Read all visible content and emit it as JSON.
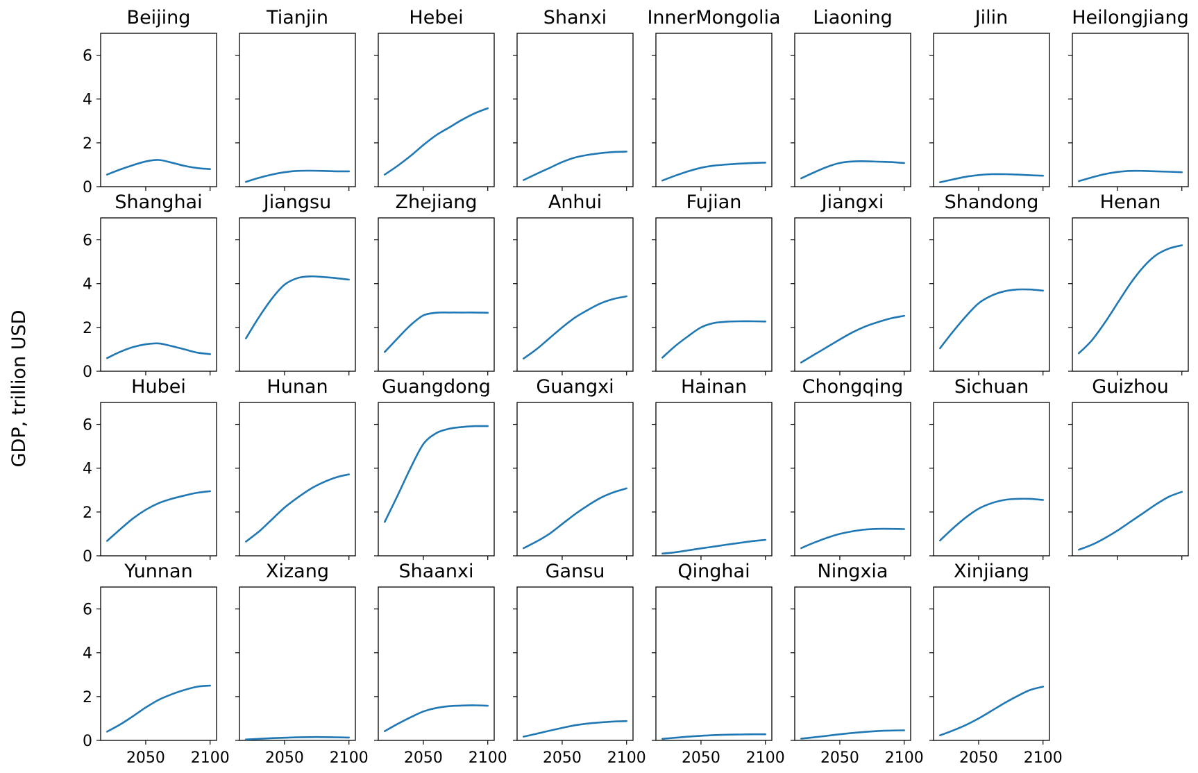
{
  "figure": {
    "ylabel": "GDP, trillion USD",
    "line_color": "#1f77b4",
    "xticks": [
      2050,
      2100
    ],
    "xtick_labels": [
      "2050",
      "2100"
    ],
    "yticks": [
      0,
      2,
      4,
      6
    ],
    "ytick_labels": [
      "0",
      "2",
      "4",
      "6"
    ]
  },
  "chart_data": {
    "type": "line",
    "layout": "small-multiples 4x8, shared x and y axes",
    "ylabel": "GDP, trillion USD",
    "ylim": [
      0,
      7
    ],
    "xlim": [
      2015,
      2105
    ],
    "x": [
      2020,
      2030,
      2040,
      2050,
      2060,
      2070,
      2080,
      2090,
      2100
    ],
    "series": [
      {
        "name": "Beijing",
        "values": [
          0.55,
          0.78,
          0.98,
          1.15,
          1.22,
          1.1,
          0.95,
          0.85,
          0.8
        ]
      },
      {
        "name": "Tianjin",
        "values": [
          0.22,
          0.4,
          0.55,
          0.66,
          0.72,
          0.73,
          0.72,
          0.7,
          0.7
        ]
      },
      {
        "name": "Hebei",
        "values": [
          0.55,
          0.95,
          1.4,
          1.9,
          2.35,
          2.7,
          3.05,
          3.35,
          3.58
        ]
      },
      {
        "name": "Shanxi",
        "values": [
          0.3,
          0.58,
          0.85,
          1.12,
          1.33,
          1.45,
          1.53,
          1.58,
          1.6
        ]
      },
      {
        "name": "InnerMongolia",
        "values": [
          0.28,
          0.5,
          0.7,
          0.86,
          0.96,
          1.01,
          1.05,
          1.08,
          1.1
        ]
      },
      {
        "name": "Liaoning",
        "values": [
          0.38,
          0.65,
          0.9,
          1.08,
          1.15,
          1.16,
          1.14,
          1.12,
          1.08
        ]
      },
      {
        "name": "Jilin",
        "values": [
          0.2,
          0.33,
          0.45,
          0.53,
          0.57,
          0.57,
          0.55,
          0.52,
          0.5
        ]
      },
      {
        "name": "Heilongjiang",
        "values": [
          0.25,
          0.42,
          0.57,
          0.67,
          0.72,
          0.72,
          0.7,
          0.68,
          0.66
        ]
      },
      {
        "name": "Shanghai",
        "values": [
          0.6,
          0.88,
          1.1,
          1.23,
          1.27,
          1.15,
          1.0,
          0.85,
          0.78
        ]
      },
      {
        "name": "Jiangsu",
        "values": [
          1.5,
          2.45,
          3.3,
          3.95,
          4.25,
          4.33,
          4.3,
          4.25,
          4.18
        ]
      },
      {
        "name": "Zhejiang",
        "values": [
          0.88,
          1.5,
          2.1,
          2.55,
          2.67,
          2.68,
          2.68,
          2.68,
          2.67
        ]
      },
      {
        "name": "Anhui",
        "values": [
          0.58,
          1.0,
          1.5,
          2.0,
          2.45,
          2.8,
          3.1,
          3.3,
          3.42
        ]
      },
      {
        "name": "Fujian",
        "values": [
          0.62,
          1.15,
          1.6,
          2.0,
          2.2,
          2.26,
          2.28,
          2.28,
          2.27
        ]
      },
      {
        "name": "Jiangxi",
        "values": [
          0.4,
          0.75,
          1.1,
          1.45,
          1.78,
          2.05,
          2.25,
          2.42,
          2.53
        ]
      },
      {
        "name": "Shandong",
        "values": [
          1.05,
          1.8,
          2.5,
          3.1,
          3.45,
          3.65,
          3.73,
          3.73,
          3.68
        ]
      },
      {
        "name": "Henan",
        "values": [
          0.82,
          1.4,
          2.2,
          3.1,
          4.0,
          4.75,
          5.3,
          5.6,
          5.75
        ]
      },
      {
        "name": "Hubei",
        "values": [
          0.68,
          1.2,
          1.7,
          2.1,
          2.4,
          2.6,
          2.75,
          2.88,
          2.95
        ]
      },
      {
        "name": "Hunan",
        "values": [
          0.65,
          1.1,
          1.65,
          2.2,
          2.65,
          3.05,
          3.35,
          3.58,
          3.72
        ]
      },
      {
        "name": "Guangdong",
        "values": [
          1.55,
          2.75,
          4.0,
          5.1,
          5.6,
          5.8,
          5.88,
          5.92,
          5.92
        ]
      },
      {
        "name": "Guangxi",
        "values": [
          0.35,
          0.65,
          1.0,
          1.45,
          1.9,
          2.3,
          2.65,
          2.9,
          3.08
        ]
      },
      {
        "name": "Hainan",
        "values": [
          0.1,
          0.16,
          0.25,
          0.34,
          0.42,
          0.51,
          0.59,
          0.67,
          0.73
        ]
      },
      {
        "name": "Chongqing",
        "values": [
          0.35,
          0.6,
          0.82,
          1.0,
          1.12,
          1.2,
          1.23,
          1.23,
          1.22
        ]
      },
      {
        "name": "Sichuan",
        "values": [
          0.7,
          1.25,
          1.75,
          2.15,
          2.4,
          2.55,
          2.6,
          2.6,
          2.55
        ]
      },
      {
        "name": "Guizhou",
        "values": [
          0.28,
          0.5,
          0.8,
          1.15,
          1.55,
          1.95,
          2.35,
          2.7,
          2.92
        ]
      },
      {
        "name": "Yunnan",
        "values": [
          0.4,
          0.72,
          1.1,
          1.5,
          1.85,
          2.1,
          2.3,
          2.45,
          2.5
        ]
      },
      {
        "name": "Xizang",
        "values": [
          0.04,
          0.07,
          0.1,
          0.12,
          0.14,
          0.15,
          0.15,
          0.14,
          0.13
        ]
      },
      {
        "name": "Shaanxi",
        "values": [
          0.42,
          0.75,
          1.05,
          1.32,
          1.48,
          1.56,
          1.59,
          1.6,
          1.58
        ]
      },
      {
        "name": "Gansu",
        "values": [
          0.17,
          0.3,
          0.44,
          0.57,
          0.69,
          0.77,
          0.82,
          0.86,
          0.88
        ]
      },
      {
        "name": "Qinghai",
        "values": [
          0.07,
          0.12,
          0.17,
          0.21,
          0.24,
          0.26,
          0.27,
          0.28,
          0.28
        ]
      },
      {
        "name": "Ningxia",
        "values": [
          0.08,
          0.14,
          0.21,
          0.28,
          0.34,
          0.39,
          0.43,
          0.45,
          0.46
        ]
      },
      {
        "name": "Xinjiang",
        "values": [
          0.23,
          0.45,
          0.7,
          1.0,
          1.35,
          1.7,
          2.02,
          2.3,
          2.45
        ]
      }
    ]
  }
}
